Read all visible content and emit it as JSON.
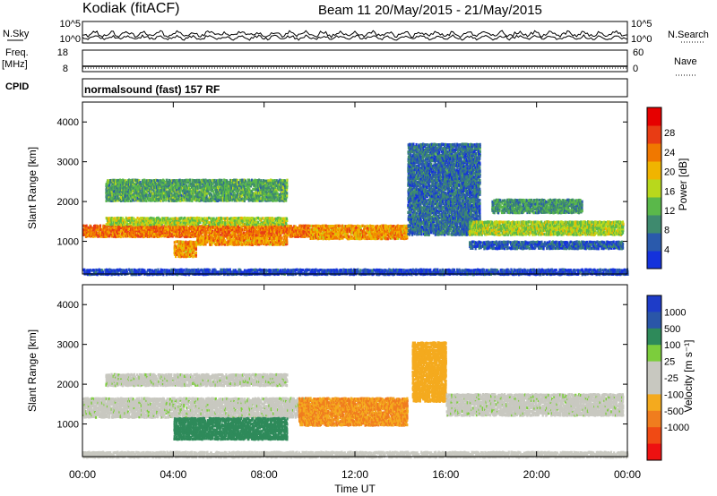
{
  "header": {
    "station": "Kodiak (fitACF)",
    "beam_date": "Beam 11  20/May/2015 - 21/May/2015"
  },
  "panels": {
    "noise": {
      "left_label": "N.Sky",
      "left_ticks": [
        "10^5",
        "10^0"
      ],
      "right_ticks": [
        "10^5",
        "10^0"
      ],
      "right_label": "N.Search"
    },
    "freq": {
      "left_label_top": "Freq.",
      "left_label_bottom": "[MHz]",
      "left_ticks": [
        "18",
        "8"
      ],
      "right_ticks": [
        "60",
        "0"
      ],
      "right_label": "Nave"
    },
    "cpid": {
      "label": "CPID",
      "value": "normalsound (fast) 157 RF"
    }
  },
  "colors": {
    "power": [
      "#1432dc",
      "#2a5aac",
      "#3e8a6e",
      "#5ab84a",
      "#b8d81c",
      "#f0b400",
      "#f07800",
      "#e83c14",
      "#e60000"
    ],
    "velocity": [
      "#ee1111",
      "#f04a14",
      "#f07d1e",
      "#f4aa1e",
      "#c8c8c0",
      "#c8c8c0",
      "#7ccd3c",
      "#2e8a5a",
      "#2a56a8",
      "#1e3cc8"
    ]
  },
  "chart_data": [
    {
      "type": "heatmap",
      "title": "",
      "xlabel": "Time UT",
      "ylabel": "Slant Range [km]",
      "x_ticks": [
        "00:00",
        "04:00",
        "08:00",
        "12:00",
        "16:00",
        "20:00",
        "00:00"
      ],
      "y_ticks": [
        "1000",
        "2000",
        "3000",
        "4000"
      ],
      "ylim": [
        180,
        4500
      ],
      "colorbar_label": "Power [dB]",
      "colorbar_ticks": [
        "4",
        "8",
        "12",
        "16",
        "20",
        "24",
        "28"
      ],
      "bands": [
        {
          "x": [
            0,
            10
          ],
          "y": [
            1150,
            1450
          ],
          "value": 24
        },
        {
          "x": [
            1,
            9
          ],
          "y": [
            1450,
            1650
          ],
          "value": 16
        },
        {
          "x": [
            4,
            5
          ],
          "y": [
            650,
            1050
          ],
          "value": 22
        },
        {
          "x": [
            5,
            9
          ],
          "y": [
            950,
            1150
          ],
          "value": 22
        },
        {
          "x": [
            10,
            14.3
          ],
          "y": [
            1100,
            1450
          ],
          "value": 22
        },
        {
          "x": [
            1,
            9
          ],
          "y": [
            2050,
            2600
          ],
          "value": 12
        },
        {
          "x": [
            14.3,
            17.5
          ],
          "y": [
            1200,
            3500
          ],
          "value": 8
        },
        {
          "x": [
            17,
            23.8
          ],
          "y": [
            1200,
            1550
          ],
          "value": 16
        },
        {
          "x": [
            18,
            22
          ],
          "y": [
            1750,
            2100
          ],
          "value": 11
        },
        {
          "x": [
            17,
            23.8
          ],
          "y": [
            850,
            1050
          ],
          "value": 7
        },
        {
          "x": [
            0,
            24
          ],
          "y": [
            200,
            350
          ],
          "value": 5
        }
      ]
    },
    {
      "type": "heatmap",
      "title": "",
      "xlabel": "Time UT",
      "ylabel": "Slant Range [km]",
      "x_ticks": [
        "00:00",
        "04:00",
        "08:00",
        "12:00",
        "16:00",
        "20:00",
        "00:00"
      ],
      "y_ticks": [
        "1000",
        "2000",
        "3000",
        "4000"
      ],
      "ylim": [
        180,
        4500
      ],
      "colorbar_label": "Velocity [m s⁻¹]",
      "colorbar_ticks": [
        "1000",
        "500",
        "100",
        "25",
        "-25",
        "-100",
        "-500",
        "-1000"
      ],
      "bands": [
        {
          "x": [
            0,
            10
          ],
          "y": [
            1200,
            1700
          ],
          "value": 0
        },
        {
          "x": [
            4,
            9
          ],
          "y": [
            650,
            1200
          ],
          "value": 180
        },
        {
          "x": [
            9.5,
            14.3
          ],
          "y": [
            1000,
            1700
          ],
          "value": -250
        },
        {
          "x": [
            14.5,
            16
          ],
          "y": [
            1600,
            3100
          ],
          "value": -200
        },
        {
          "x": [
            16,
            23.8
          ],
          "y": [
            1250,
            1800
          ],
          "value": 0
        },
        {
          "x": [
            1,
            9
          ],
          "y": [
            2000,
            2300
          ],
          "value": 0
        },
        {
          "x": [
            0,
            24
          ],
          "y": [
            200,
            350
          ],
          "value": -30
        }
      ]
    }
  ]
}
